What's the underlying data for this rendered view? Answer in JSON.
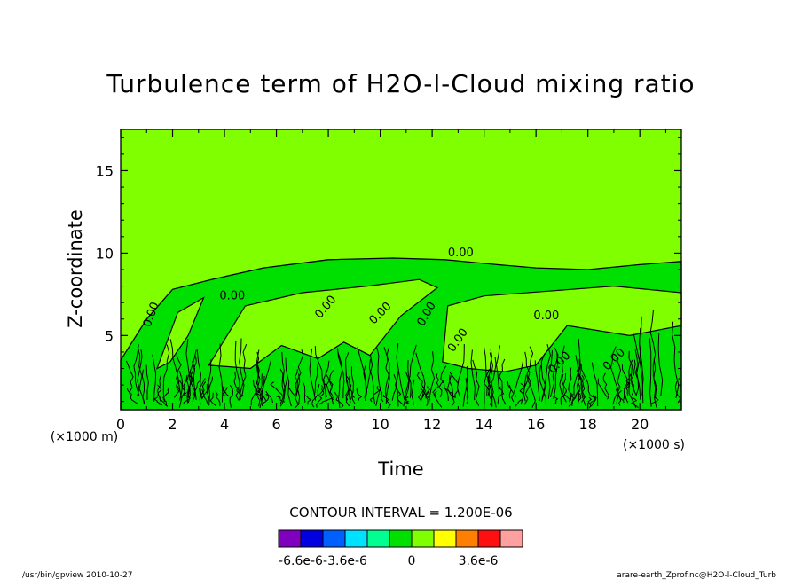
{
  "chart_data": {
    "type": "heatmap",
    "title": "Turbulence term of H2O-l-Cloud mixing ratio",
    "xlabel": "Time",
    "ylabel": "Z-coordinate",
    "x_scale_note": "(×1000 s)",
    "y_scale_note": "(×1000 m)",
    "xlim": [
      0,
      21.6
    ],
    "ylim": [
      0.5,
      17.5
    ],
    "x_ticks": [
      "0",
      "2",
      "4",
      "6",
      "8",
      "10",
      "12",
      "14",
      "16",
      "18",
      "20"
    ],
    "y_ticks": [
      "5",
      "10",
      "15"
    ],
    "contour_interval_text": "CONTOUR INTERVAL = 1.200E-06",
    "contour_labels": [
      "0.00",
      "0.00",
      "0.00",
      "0.00",
      "0.00",
      "0.00",
      "0.00",
      "0.00",
      "0.00",
      "0.00"
    ],
    "colorbar": {
      "colors": [
        "#8000c0",
        "#0000e0",
        "#0060ff",
        "#00e0ff",
        "#00ff90",
        "#00e000",
        "#80ff00",
        "#ffff00",
        "#ff8000",
        "#ff1010",
        "#ffa0a0"
      ],
      "labels": [
        "-6.6e-6",
        "-3.6e-6",
        "0",
        "3.6e-6"
      ]
    },
    "background_color": "#7fff00",
    "band_color": "#00e000"
  },
  "footer": {
    "left": "/usr/bin/gpview  2010-10-27",
    "right": "arare-earth_Zprof.nc@H2O-l-Cloud_Turb"
  }
}
